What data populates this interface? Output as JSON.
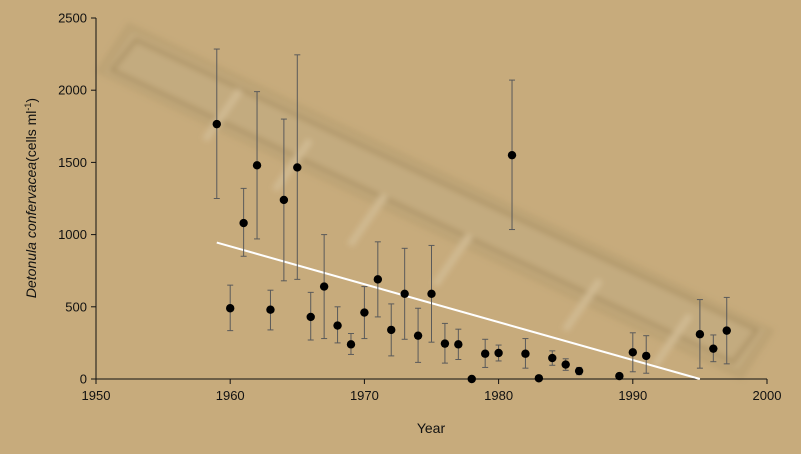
{
  "colors": {
    "background": "#c7ab7c",
    "points": "#000000",
    "error_bars": "#5a5a5a",
    "trend_line": "#ffffff"
  },
  "chart_data": {
    "type": "scatter",
    "title": "",
    "xlabel": "Year",
    "ylabel_italic": "Detonula confervacea",
    "ylabel_units": "(cells ml",
    "ylabel_sup": "-1",
    "ylabel_close": ")",
    "xlim": [
      1950,
      2000
    ],
    "ylim": [
      0,
      2500
    ],
    "x_ticks": [
      "1950",
      "1960",
      "1970",
      "1980",
      "1990",
      "2000"
    ],
    "y_ticks": [
      "0",
      "500",
      "1000",
      "1500",
      "2000",
      "2500"
    ],
    "grid": false,
    "legend": "none",
    "background_image": "diatom-chain-micrograph",
    "series": [
      {
        "points": [
          {
            "x": 1959,
            "y": 1765,
            "lo": 1250,
            "hi": 2285
          },
          {
            "x": 1960,
            "y": 490,
            "lo": 335,
            "hi": 650
          },
          {
            "x": 1961,
            "y": 1080,
            "lo": 850,
            "hi": 1320
          },
          {
            "x": 1962,
            "y": 1480,
            "lo": 970,
            "hi": 1990
          },
          {
            "x": 1963,
            "y": 480,
            "lo": 340,
            "hi": 615
          },
          {
            "x": 1964,
            "y": 1240,
            "lo": 680,
            "hi": 1800
          },
          {
            "x": 1965,
            "y": 1465,
            "lo": 690,
            "hi": 2245
          },
          {
            "x": 1966,
            "y": 430,
            "lo": 270,
            "hi": 600
          },
          {
            "x": 1967,
            "y": 640,
            "lo": 280,
            "hi": 1000
          },
          {
            "x": 1968,
            "y": 370,
            "lo": 250,
            "hi": 500
          },
          {
            "x": 1969,
            "y": 240,
            "lo": 170,
            "hi": 315
          },
          {
            "x": 1970,
            "y": 460,
            "lo": 280,
            "hi": 640
          },
          {
            "x": 1971,
            "y": 690,
            "lo": 430,
            "hi": 950
          },
          {
            "x": 1972,
            "y": 340,
            "lo": 160,
            "hi": 520
          },
          {
            "x": 1973,
            "y": 590,
            "lo": 275,
            "hi": 905
          },
          {
            "x": 1974,
            "y": 300,
            "lo": 115,
            "hi": 490
          },
          {
            "x": 1975,
            "y": 590,
            "lo": 255,
            "hi": 925
          },
          {
            "x": 1976,
            "y": 245,
            "lo": 110,
            "hi": 385
          },
          {
            "x": 1977,
            "y": 240,
            "lo": 135,
            "hi": 345
          },
          {
            "x": 1978,
            "y": 0,
            "lo": 0,
            "hi": 0
          },
          {
            "x": 1979,
            "y": 175,
            "lo": 80,
            "hi": 275
          },
          {
            "x": 1980,
            "y": 180,
            "lo": 125,
            "hi": 235
          },
          {
            "x": 1981,
            "y": 1550,
            "lo": 1035,
            "hi": 2070
          },
          {
            "x": 1982,
            "y": 175,
            "lo": 75,
            "hi": 280
          },
          {
            "x": 1983,
            "y": 5,
            "lo": 0,
            "hi": 15
          },
          {
            "x": 1984,
            "y": 145,
            "lo": 95,
            "hi": 195
          },
          {
            "x": 1985,
            "y": 100,
            "lo": 60,
            "hi": 140
          },
          {
            "x": 1986,
            "y": 55,
            "lo": 30,
            "hi": 80
          },
          {
            "x": 1989,
            "y": 20,
            "lo": 10,
            "hi": 30
          },
          {
            "x": 1990,
            "y": 185,
            "lo": 50,
            "hi": 320
          },
          {
            "x": 1991,
            "y": 160,
            "lo": 40,
            "hi": 300
          },
          {
            "x": 1995,
            "y": 310,
            "lo": 75,
            "hi": 550
          },
          {
            "x": 1996,
            "y": 210,
            "lo": 120,
            "hi": 305
          },
          {
            "x": 1997,
            "y": 335,
            "lo": 105,
            "hi": 565
          }
        ]
      }
    ],
    "trend_line": {
      "x": [
        1959,
        1995
      ],
      "y": [
        945,
        0
      ]
    }
  }
}
